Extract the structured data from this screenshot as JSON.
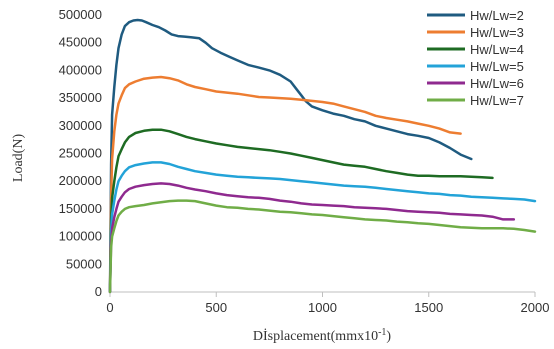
{
  "chart_data": {
    "type": "line",
    "title": "",
    "xlabel": "Dİsplacement(mmx10",
    "xlabel_sup": "-1",
    "xlabel_end": ")",
    "ylabel": "Load(N)",
    "xlim": [
      0,
      2000
    ],
    "ylim": [
      0,
      500000
    ],
    "xticks": [
      0,
      500,
      1000,
      1500,
      2000
    ],
    "yticks": [
      0,
      50000,
      100000,
      150000,
      200000,
      250000,
      300000,
      350000,
      400000,
      450000,
      500000
    ],
    "grid": false,
    "legend_position": "top-right",
    "series": [
      {
        "name": "Hw/Lw=2",
        "color": "#1f5b80",
        "points": [
          [
            0,
            0
          ],
          [
            5,
            230000
          ],
          [
            10,
            320000
          ],
          [
            20,
            370000
          ],
          [
            30,
            410000
          ],
          [
            40,
            440000
          ],
          [
            55,
            465000
          ],
          [
            70,
            480000
          ],
          [
            90,
            487000
          ],
          [
            110,
            490000
          ],
          [
            130,
            491000
          ],
          [
            150,
            490000
          ],
          [
            170,
            487000
          ],
          [
            200,
            482000
          ],
          [
            230,
            478000
          ],
          [
            260,
            472000
          ],
          [
            290,
            465000
          ],
          [
            320,
            462000
          ],
          [
            350,
            461000
          ],
          [
            380,
            460000
          ],
          [
            420,
            458000
          ],
          [
            450,
            450000
          ],
          [
            480,
            440000
          ],
          [
            520,
            432000
          ],
          [
            560,
            425000
          ],
          [
            600,
            418000
          ],
          [
            650,
            410000
          ],
          [
            700,
            405000
          ],
          [
            750,
            400000
          ],
          [
            800,
            392000
          ],
          [
            850,
            380000
          ],
          [
            880,
            365000
          ],
          [
            900,
            355000
          ],
          [
            920,
            345000
          ],
          [
            950,
            335000
          ],
          [
            1000,
            328000
          ],
          [
            1050,
            322000
          ],
          [
            1100,
            318000
          ],
          [
            1150,
            312000
          ],
          [
            1200,
            308000
          ],
          [
            1250,
            300000
          ],
          [
            1300,
            295000
          ],
          [
            1350,
            290000
          ],
          [
            1400,
            285000
          ],
          [
            1450,
            282000
          ],
          [
            1500,
            278000
          ],
          [
            1550,
            270000
          ],
          [
            1600,
            260000
          ],
          [
            1650,
            248000
          ],
          [
            1700,
            240000
          ]
        ]
      },
      {
        "name": "Hw/Lw=3",
        "color": "#ed7d31",
        "points": [
          [
            0,
            0
          ],
          [
            5,
            170000
          ],
          [
            10,
            240000
          ],
          [
            20,
            290000
          ],
          [
            30,
            320000
          ],
          [
            40,
            340000
          ],
          [
            55,
            355000
          ],
          [
            70,
            368000
          ],
          [
            90,
            375000
          ],
          [
            120,
            380000
          ],
          [
            160,
            385000
          ],
          [
            200,
            387000
          ],
          [
            240,
            388000
          ],
          [
            280,
            386000
          ],
          [
            320,
            382000
          ],
          [
            360,
            375000
          ],
          [
            400,
            370000
          ],
          [
            450,
            366000
          ],
          [
            500,
            362000
          ],
          [
            550,
            360000
          ],
          [
            600,
            358000
          ],
          [
            650,
            355000
          ],
          [
            700,
            352000
          ],
          [
            750,
            351000
          ],
          [
            800,
            350000
          ],
          [
            850,
            349000
          ],
          [
            900,
            347000
          ],
          [
            950,
            345000
          ],
          [
            1000,
            343000
          ],
          [
            1050,
            340000
          ],
          [
            1100,
            335000
          ],
          [
            1150,
            330000
          ],
          [
            1200,
            325000
          ],
          [
            1250,
            318000
          ],
          [
            1300,
            314000
          ],
          [
            1350,
            311000
          ],
          [
            1400,
            308000
          ],
          [
            1450,
            304000
          ],
          [
            1500,
            300000
          ],
          [
            1550,
            295000
          ],
          [
            1600,
            288000
          ],
          [
            1650,
            286000
          ]
        ]
      },
      {
        "name": "Hw/Lw=4",
        "color": "#1e6b23",
        "points": [
          [
            0,
            0
          ],
          [
            5,
            130000
          ],
          [
            10,
            170000
          ],
          [
            20,
            200000
          ],
          [
            30,
            225000
          ],
          [
            40,
            245000
          ],
          [
            55,
            258000
          ],
          [
            70,
            270000
          ],
          [
            90,
            280000
          ],
          [
            120,
            287000
          ],
          [
            160,
            291000
          ],
          [
            200,
            293000
          ],
          [
            240,
            293000
          ],
          [
            280,
            290000
          ],
          [
            320,
            285000
          ],
          [
            360,
            280000
          ],
          [
            400,
            276000
          ],
          [
            450,
            272000
          ],
          [
            500,
            268000
          ],
          [
            550,
            265000
          ],
          [
            600,
            262000
          ],
          [
            650,
            260000
          ],
          [
            700,
            258000
          ],
          [
            750,
            256000
          ],
          [
            800,
            253000
          ],
          [
            850,
            250000
          ],
          [
            900,
            246000
          ],
          [
            950,
            242000
          ],
          [
            1000,
            238000
          ],
          [
            1050,
            234000
          ],
          [
            1100,
            230000
          ],
          [
            1150,
            228000
          ],
          [
            1200,
            226000
          ],
          [
            1250,
            222000
          ],
          [
            1300,
            218000
          ],
          [
            1350,
            215000
          ],
          [
            1400,
            212000
          ],
          [
            1450,
            210000
          ],
          [
            1500,
            210000
          ],
          [
            1550,
            209000
          ],
          [
            1600,
            209000
          ],
          [
            1650,
            209000
          ],
          [
            1700,
            208000
          ],
          [
            1750,
            207000
          ],
          [
            1800,
            206000
          ]
        ]
      },
      {
        "name": "Hw/Lw=5",
        "color": "#23a3d8",
        "points": [
          [
            0,
            0
          ],
          [
            5,
            110000
          ],
          [
            10,
            140000
          ],
          [
            20,
            165000
          ],
          [
            30,
            185000
          ],
          [
            40,
            200000
          ],
          [
            55,
            210000
          ],
          [
            70,
            218000
          ],
          [
            90,
            225000
          ],
          [
            120,
            229000
          ],
          [
            160,
            232000
          ],
          [
            200,
            234000
          ],
          [
            240,
            234000
          ],
          [
            280,
            231000
          ],
          [
            320,
            226000
          ],
          [
            360,
            222000
          ],
          [
            400,
            218000
          ],
          [
            450,
            215000
          ],
          [
            500,
            212000
          ],
          [
            550,
            210000
          ],
          [
            600,
            208000
          ],
          [
            650,
            207000
          ],
          [
            700,
            206000
          ],
          [
            750,
            205000
          ],
          [
            800,
            204000
          ],
          [
            850,
            202000
          ],
          [
            900,
            200000
          ],
          [
            950,
            198000
          ],
          [
            1000,
            196000
          ],
          [
            1050,
            194000
          ],
          [
            1100,
            192000
          ],
          [
            1150,
            191000
          ],
          [
            1200,
            190000
          ],
          [
            1250,
            188000
          ],
          [
            1300,
            186000
          ],
          [
            1350,
            184000
          ],
          [
            1400,
            182000
          ],
          [
            1450,
            180000
          ],
          [
            1500,
            178000
          ],
          [
            1550,
            177000
          ],
          [
            1600,
            175000
          ],
          [
            1650,
            174000
          ],
          [
            1700,
            172000
          ],
          [
            1750,
            171000
          ],
          [
            1800,
            170000
          ],
          [
            1850,
            169000
          ],
          [
            1900,
            168000
          ],
          [
            1950,
            167000
          ],
          [
            2000,
            164000
          ]
        ]
      },
      {
        "name": "Hw/Lw=6",
        "color": "#8f2a8f",
        "points": [
          [
            0,
            0
          ],
          [
            5,
            90000
          ],
          [
            10,
            115000
          ],
          [
            20,
            135000
          ],
          [
            30,
            150000
          ],
          [
            40,
            163000
          ],
          [
            55,
            172000
          ],
          [
            70,
            180000
          ],
          [
            90,
            186000
          ],
          [
            120,
            190000
          ],
          [
            160,
            193000
          ],
          [
            200,
            195000
          ],
          [
            240,
            196000
          ],
          [
            280,
            195000
          ],
          [
            320,
            192000
          ],
          [
            360,
            188000
          ],
          [
            400,
            185000
          ],
          [
            450,
            182000
          ],
          [
            500,
            178000
          ],
          [
            550,
            175000
          ],
          [
            600,
            173000
          ],
          [
            650,
            171000
          ],
          [
            700,
            170000
          ],
          [
            750,
            168000
          ],
          [
            800,
            165000
          ],
          [
            850,
            163000
          ],
          [
            900,
            160000
          ],
          [
            950,
            158000
          ],
          [
            1000,
            157000
          ],
          [
            1050,
            156000
          ],
          [
            1100,
            155000
          ],
          [
            1150,
            153000
          ],
          [
            1200,
            152000
          ],
          [
            1250,
            151000
          ],
          [
            1300,
            150000
          ],
          [
            1350,
            148000
          ],
          [
            1400,
            146000
          ],
          [
            1450,
            145000
          ],
          [
            1500,
            144000
          ],
          [
            1550,
            143000
          ],
          [
            1600,
            141000
          ],
          [
            1650,
            140000
          ],
          [
            1700,
            139000
          ],
          [
            1750,
            138000
          ],
          [
            1800,
            136000
          ],
          [
            1850,
            131000
          ],
          [
            1900,
            131000
          ]
        ]
      },
      {
        "name": "Hw/Lw=7",
        "color": "#70ad47",
        "points": [
          [
            0,
            0
          ],
          [
            5,
            80000
          ],
          [
            10,
            100000
          ],
          [
            20,
            115000
          ],
          [
            30,
            128000
          ],
          [
            40,
            138000
          ],
          [
            55,
            145000
          ],
          [
            70,
            150000
          ],
          [
            90,
            153000
          ],
          [
            120,
            155000
          ],
          [
            160,
            157000
          ],
          [
            200,
            160000
          ],
          [
            240,
            162000
          ],
          [
            280,
            164000
          ],
          [
            320,
            165000
          ],
          [
            360,
            165000
          ],
          [
            400,
            164000
          ],
          [
            450,
            160000
          ],
          [
            500,
            156000
          ],
          [
            550,
            153000
          ],
          [
            600,
            152000
          ],
          [
            650,
            150000
          ],
          [
            700,
            149000
          ],
          [
            750,
            147000
          ],
          [
            800,
            145000
          ],
          [
            850,
            144000
          ],
          [
            900,
            142000
          ],
          [
            950,
            140000
          ],
          [
            1000,
            139000
          ],
          [
            1050,
            137000
          ],
          [
            1100,
            135000
          ],
          [
            1150,
            133000
          ],
          [
            1200,
            131000
          ],
          [
            1250,
            130000
          ],
          [
            1300,
            129000
          ],
          [
            1350,
            127000
          ],
          [
            1400,
            126000
          ],
          [
            1450,
            124000
          ],
          [
            1500,
            123000
          ],
          [
            1550,
            121000
          ],
          [
            1600,
            119000
          ],
          [
            1650,
            117000
          ],
          [
            1700,
            116000
          ],
          [
            1750,
            115000
          ],
          [
            1800,
            115000
          ],
          [
            1850,
            115000
          ],
          [
            1900,
            114000
          ],
          [
            1950,
            112000
          ],
          [
            2000,
            109000
          ]
        ]
      }
    ]
  }
}
